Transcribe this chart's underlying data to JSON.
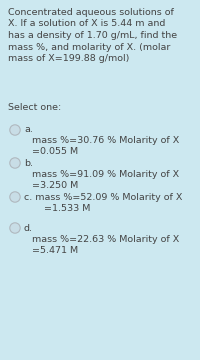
{
  "bg_color": "#cce8f0",
  "text_color": "#444444",
  "question_lines": [
    "Concentrated aqueous solutions of",
    "X. If a solution of X is 5.44 m and",
    "has a density of 1.70 g/mL, find the",
    "mass %, and molarity of X. (molar",
    "mass of X=199.88 g/mol)"
  ],
  "select_one": "Select one:",
  "options": [
    {
      "label": "a.",
      "line1": "mass %=30.76 % Molarity of X",
      "line2": "=0.055 M",
      "inline": false
    },
    {
      "label": "b.",
      "line1": "mass %=91.09 % Molarity of X",
      "line2": "=3.250 M",
      "inline": false
    },
    {
      "label": "c.",
      "line1": "mass %=52.09 % Molarity of X",
      "line2": "=1.533 M",
      "inline": true
    },
    {
      "label": "d.",
      "line1": "mass %=22.63 % Molarity of X",
      "line2": "=5.471 M",
      "inline": false
    }
  ],
  "circle_color": "#b0b8be",
  "circle_facecolor": "#c8dde6",
  "font_size": 6.8
}
